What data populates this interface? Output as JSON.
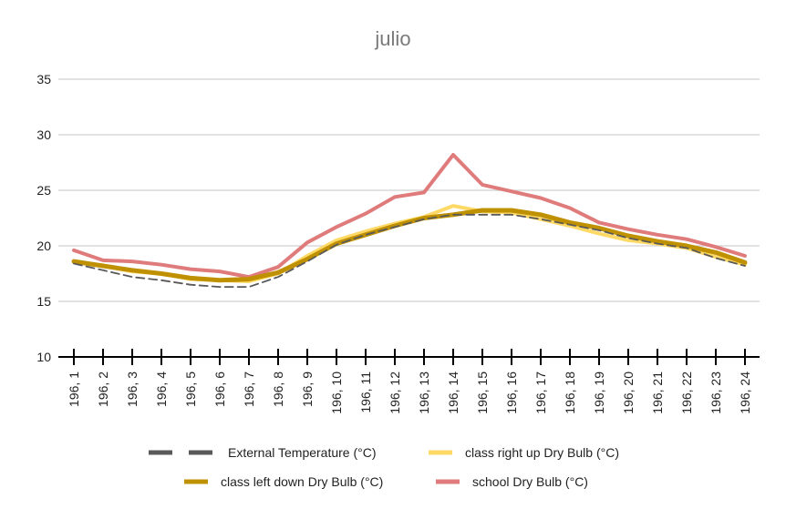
{
  "chart_data": {
    "type": "line",
    "title": "julio",
    "xlabel": "",
    "ylabel": "",
    "ylim": [
      10,
      35
    ],
    "yticks": [
      10,
      15,
      20,
      25,
      30,
      35
    ],
    "grid": true,
    "legend_position": "bottom",
    "categories": [
      "196, 1",
      "196, 2",
      "196, 3",
      "196, 4",
      "196, 5",
      "196, 6",
      "196, 7",
      "196, 8",
      "196, 9",
      "196, 10",
      "196, 11",
      "196, 12",
      "196, 13",
      "196, 14",
      "196, 15",
      "196, 16",
      "196, 17",
      "196, 18",
      "196, 19",
      "196, 20",
      "196, 21",
      "196, 22",
      "196, 23",
      "196, 24"
    ],
    "series": [
      {
        "name": "External Temperature (°C)",
        "color": "#595959",
        "style": "dashed",
        "values": [
          18.4,
          17.8,
          17.2,
          16.9,
          16.5,
          16.3,
          16.3,
          17.2,
          18.6,
          20.1,
          21.0,
          21.7,
          22.4,
          22.8,
          22.8,
          22.8,
          22.4,
          21.9,
          21.4,
          20.7,
          20.2,
          19.8,
          18.9,
          18.2
        ]
      },
      {
        "name": "class right up Dry Bulb (°C)",
        "color": "#ffd966",
        "style": "solid",
        "values": [
          18.6,
          18.2,
          17.7,
          17.5,
          17.0,
          16.9,
          16.8,
          17.5,
          19.1,
          20.5,
          21.3,
          22.0,
          22.6,
          23.6,
          23.1,
          23.0,
          22.4,
          21.8,
          21.1,
          20.5,
          20.2,
          19.8,
          19.0,
          18.3
        ]
      },
      {
        "name": "class left down Dry Bulb (°C)",
        "color": "#bf9000",
        "style": "solid",
        "values": [
          18.6,
          18.2,
          17.8,
          17.5,
          17.1,
          16.9,
          17.0,
          17.6,
          18.8,
          20.2,
          21.0,
          21.8,
          22.5,
          22.8,
          23.2,
          23.2,
          22.8,
          22.1,
          21.6,
          20.9,
          20.4,
          20.0,
          19.4,
          18.5
        ]
      },
      {
        "name": "school Dry Bulb (°C)",
        "color": "#e07b7b",
        "style": "solid",
        "values": [
          19.6,
          18.7,
          18.6,
          18.3,
          17.9,
          17.7,
          17.2,
          18.1,
          20.3,
          21.7,
          22.9,
          24.4,
          24.8,
          28.2,
          25.5,
          24.9,
          24.3,
          23.4,
          22.1,
          21.5,
          21.0,
          20.6,
          19.9,
          19.1
        ]
      }
    ]
  }
}
